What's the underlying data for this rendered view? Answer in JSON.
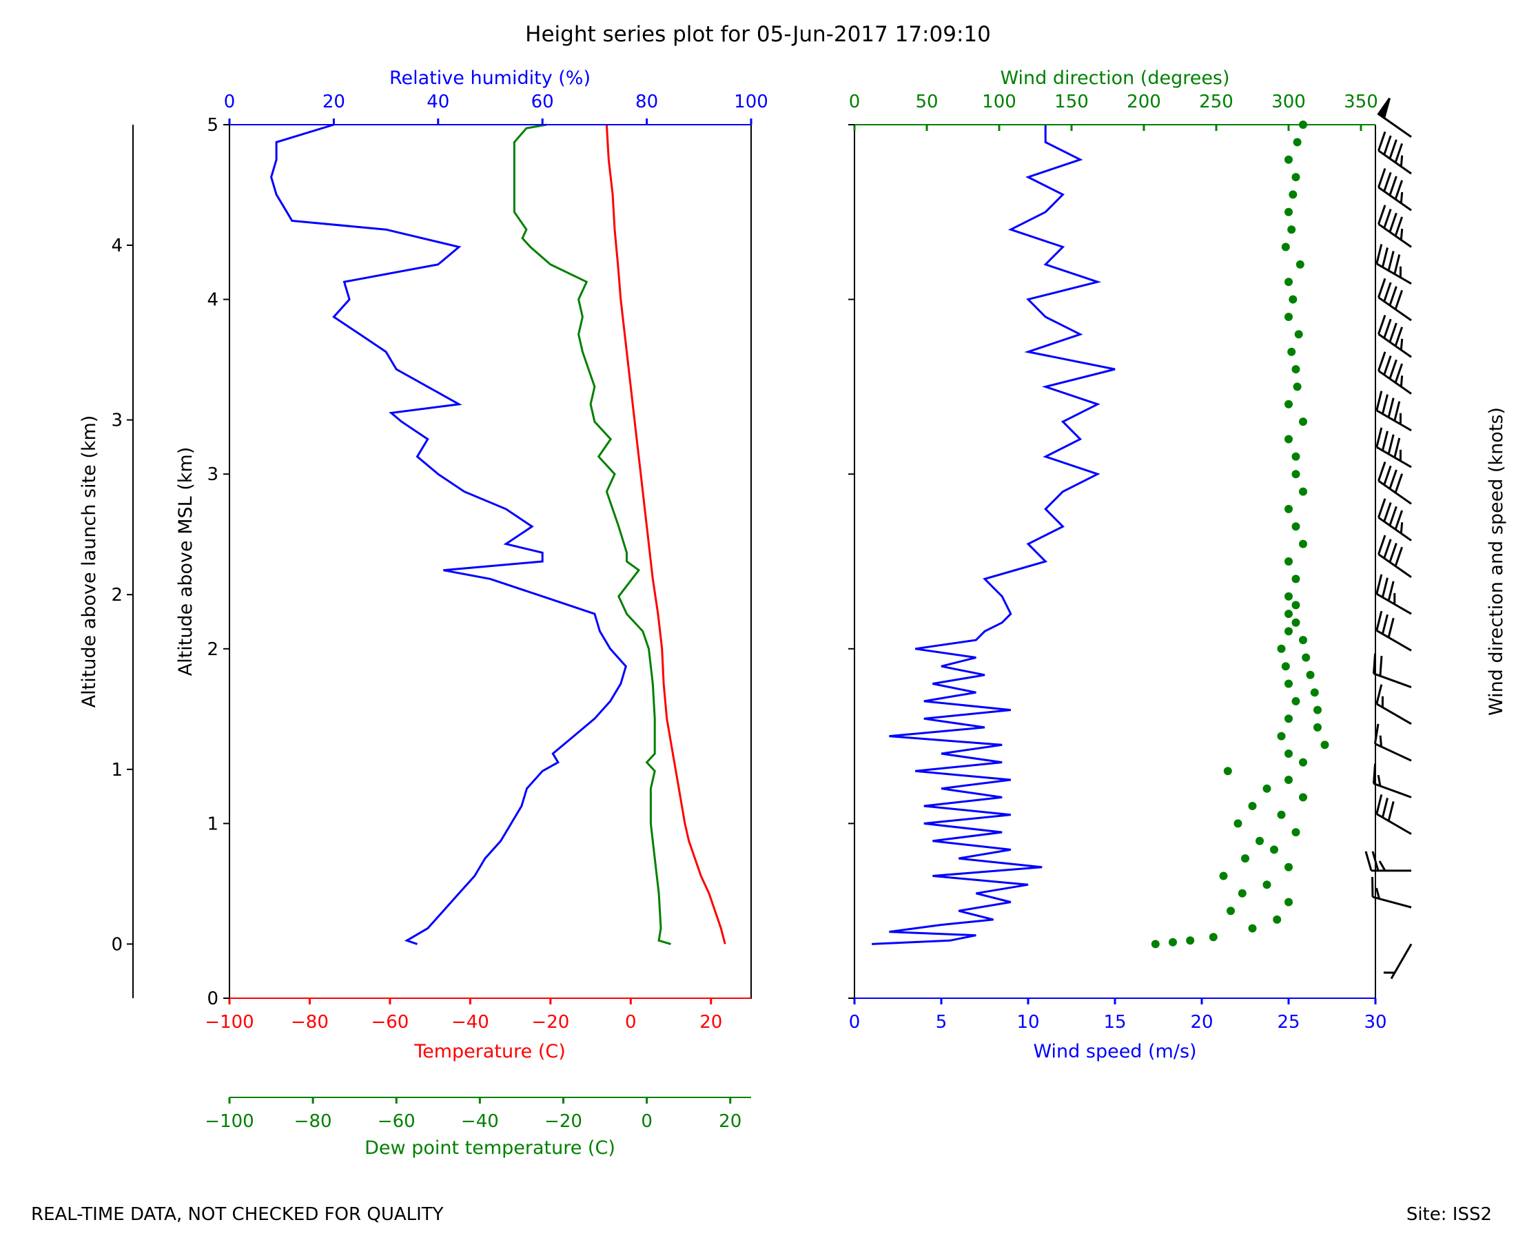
{
  "chart_data": {
    "type": "line",
    "title": "Height series plot for 05-Jun-2017 17:09:10",
    "footer_left": "REAL-TIME DATA, NOT CHECKED FOR QUALITY",
    "footer_right": "Site: ISS2",
    "colors": {
      "red": "#ff0000",
      "blue": "#0000ff",
      "green": "#008000",
      "black": "#000000"
    },
    "left_panel": {
      "ylabel_msl": "Altitude above MSL (km)",
      "ylim_msl": [
        0,
        5
      ],
      "msl_ticks": [
        "0",
        "1",
        "2",
        "3",
        "4",
        "5"
      ],
      "ylabel_launch": "Altitude above launch site (km)",
      "launch_site_offset_km": 0.31,
      "launch_ticks": [
        "0",
        "1",
        "2",
        "3",
        "4"
      ],
      "temperature": {
        "xlabel": "Temperature (C)",
        "xlim": [
          -100,
          30
        ],
        "ticks": [
          -100,
          -80,
          -60,
          -40,
          -20,
          0,
          20
        ],
        "tick_labels": [
          "−100",
          "−80",
          "−60",
          "−40",
          "−20",
          "0",
          "20"
        ],
        "alt_km": [
          0.31,
          0.4,
          0.5,
          0.6,
          0.7,
          0.8,
          0.9,
          1.0,
          1.2,
          1.4,
          1.6,
          1.8,
          2.0,
          2.2,
          2.4,
          2.6,
          2.8,
          3.0,
          3.2,
          3.4,
          3.6,
          3.8,
          4.0,
          4.2,
          4.4,
          4.6,
          4.8,
          5.0
        ],
        "values": [
          23.5,
          22.5,
          21,
          19.5,
          17.5,
          16,
          14.5,
          13.5,
          12,
          10.5,
          9,
          8.2,
          7.8,
          6.8,
          5.5,
          4.5,
          3.5,
          2.5,
          1.5,
          0.5,
          -0.5,
          -1.5,
          -2.5,
          -3.2,
          -4,
          -4.5,
          -5.5,
          -6
        ]
      },
      "dewpoint": {
        "xlabel": "Dew point temperature (C)",
        "xlim": [
          -100,
          25
        ],
        "ticks": [
          -100,
          -80,
          -60,
          -40,
          -20,
          0,
          20
        ],
        "tick_labels": [
          "−100",
          "−80",
          "−60",
          "−40",
          "−20",
          "0",
          "20"
        ],
        "alt_km": [
          0.31,
          0.33,
          0.4,
          0.6,
          0.8,
          1.0,
          1.2,
          1.3,
          1.35,
          1.4,
          1.6,
          1.8,
          2.0,
          2.1,
          2.2,
          2.3,
          2.45,
          2.5,
          2.55,
          2.7,
          2.9,
          3.0,
          3.1,
          3.2,
          3.3,
          3.4,
          3.5,
          3.7,
          3.8,
          3.9,
          4.0,
          4.1,
          4.2,
          4.3,
          4.35,
          4.4,
          4.5,
          4.7,
          4.9,
          4.98,
          5.0
        ],
        "values": [
          10,
          7,
          7.5,
          7,
          6,
          5,
          5,
          6,
          4,
          6,
          6,
          5.5,
          4.5,
          3,
          -1,
          -3,
          2,
          -1,
          -1,
          -3,
          -6,
          -4,
          -8,
          -5,
          -9,
          -10,
          -9,
          -12,
          -13,
          -12,
          -13,
          -11,
          -20,
          -25,
          -27,
          -26,
          -29,
          -29,
          -29,
          -26,
          -21
        ]
      },
      "relative_humidity": {
        "xlabel": "Relative humidity (%)",
        "xlim": [
          0,
          100
        ],
        "ticks": [
          0,
          20,
          40,
          60,
          80,
          100
        ],
        "tick_labels": [
          "0",
          "20",
          "40",
          "60",
          "80",
          "100"
        ],
        "alt_km": [
          0.31,
          0.33,
          0.4,
          0.5,
          0.6,
          0.7,
          0.8,
          0.9,
          1.0,
          1.1,
          1.2,
          1.3,
          1.35,
          1.4,
          1.5,
          1.6,
          1.7,
          1.8,
          1.9,
          2.0,
          2.1,
          2.2,
          2.3,
          2.4,
          2.45,
          2.5,
          2.55,
          2.6,
          2.7,
          2.8,
          2.9,
          3.0,
          3.1,
          3.2,
          3.3,
          3.35,
          3.4,
          3.5,
          3.6,
          3.7,
          3.8,
          3.9,
          4.0,
          4.1,
          4.2,
          4.3,
          4.4,
          4.45,
          4.5,
          4.6,
          4.7,
          4.8,
          4.9,
          5.0
        ],
        "values": [
          36,
          34,
          38,
          41,
          44,
          47,
          49,
          52,
          54,
          56,
          57,
          60,
          63,
          62,
          66,
          70,
          73,
          75,
          76,
          73,
          71,
          70,
          60,
          50,
          41,
          60,
          60,
          53,
          58,
          53,
          45,
          40,
          36,
          38,
          33,
          31,
          44,
          38,
          32,
          30,
          25,
          20,
          23,
          22,
          40,
          44,
          30,
          12,
          11,
          9,
          8,
          9,
          9,
          20
        ]
      }
    },
    "right_panel": {
      "wind_speed": {
        "xlabel": "Wind speed (m/s)",
        "xlim": [
          0,
          30
        ],
        "ticks": [
          0,
          5,
          10,
          15,
          20,
          25,
          30
        ],
        "tick_labels": [
          "0",
          "5",
          "10",
          "15",
          "20",
          "25",
          "30"
        ],
        "alt_km": [
          0.31,
          0.33,
          0.36,
          0.38,
          0.42,
          0.45,
          0.5,
          0.55,
          0.6,
          0.65,
          0.7,
          0.75,
          0.8,
          0.85,
          0.9,
          0.95,
          1.0,
          1.05,
          1.1,
          1.15,
          1.2,
          1.25,
          1.3,
          1.35,
          1.4,
          1.45,
          1.5,
          1.55,
          1.6,
          1.65,
          1.7,
          1.75,
          1.8,
          1.85,
          1.9,
          1.95,
          2.0,
          2.05,
          2.1,
          2.15,
          2.2,
          2.3,
          2.4,
          2.5,
          2.6,
          2.7,
          2.8,
          2.9,
          3.0,
          3.1,
          3.2,
          3.3,
          3.4,
          3.5,
          3.6,
          3.7,
          3.8,
          3.9,
          4.0,
          4.1,
          4.2,
          4.3,
          4.4,
          4.5,
          4.6,
          4.7,
          4.8,
          4.9,
          5.0
        ],
        "values": [
          1,
          5.5,
          7,
          2,
          5,
          8,
          6,
          9,
          7,
          10,
          4.5,
          10.8,
          6,
          9,
          4.5,
          8.5,
          4,
          9,
          4,
          8.5,
          5,
          9,
          3.5,
          8.5,
          5,
          8.5,
          2,
          7.5,
          4,
          9,
          4,
          7,
          4.5,
          7.5,
          5,
          7,
          3.5,
          7,
          7.5,
          8.5,
          9,
          8.5,
          7.5,
          11,
          10,
          12,
          11,
          12,
          14,
          11,
          13,
          12,
          14,
          11,
          15,
          10,
          13,
          11,
          10,
          14,
          11,
          12,
          9,
          11,
          12,
          10,
          13,
          11,
          11
        ]
      },
      "wind_direction": {
        "xlabel": "Wind direction (degrees)",
        "xlim": [
          0,
          360
        ],
        "ticks": [
          0,
          50,
          100,
          150,
          200,
          250,
          300,
          350
        ],
        "tick_labels": [
          "0",
          "50",
          "100",
          "150",
          "200",
          "250",
          "300",
          "350"
        ],
        "alt_km": [
          0.31,
          0.32,
          0.33,
          0.35,
          0.4,
          0.45,
          0.5,
          0.55,
          0.6,
          0.65,
          0.7,
          0.75,
          0.8,
          0.85,
          0.9,
          0.95,
          1.0,
          1.05,
          1.1,
          1.15,
          1.2,
          1.25,
          1.3,
          1.35,
          1.4,
          1.45,
          1.5,
          1.55,
          1.6,
          1.65,
          1.7,
          1.75,
          1.8,
          1.85,
          1.9,
          1.95,
          2.0,
          2.05,
          2.1,
          2.15,
          2.2,
          2.25,
          2.3,
          2.4,
          2.5,
          2.6,
          2.7,
          2.8,
          2.9,
          3.0,
          3.1,
          3.2,
          3.3,
          3.4,
          3.5,
          3.6,
          3.7,
          3.8,
          3.9,
          4.0,
          4.1,
          4.2,
          4.3,
          4.4,
          4.5,
          4.6,
          4.7,
          4.8,
          4.9,
          5.0
        ],
        "values": [
          208,
          220,
          232,
          248,
          275,
          292,
          260,
          300,
          268,
          285,
          255,
          300,
          270,
          290,
          280,
          305,
          265,
          295,
          275,
          310,
          285,
          300,
          258,
          310,
          300,
          325,
          295,
          320,
          300,
          320,
          305,
          318,
          300,
          315,
          298,
          312,
          295,
          310,
          300,
          305,
          300,
          305,
          300,
          305,
          300,
          310,
          305,
          300,
          310,
          305,
          305,
          300,
          310,
          300,
          306,
          305,
          302,
          307,
          300,
          303,
          300,
          308,
          298,
          302,
          300,
          303,
          305,
          300,
          306,
          310
        ]
      },
      "barbs": {
        "label": "Wind direction and speed (knots)",
        "alt_km": [
          0.31,
          0.52,
          0.73,
          0.94,
          1.15,
          1.36,
          1.57,
          1.78,
          1.99,
          2.2,
          2.41,
          2.62,
          2.83,
          3.04,
          3.25,
          3.46,
          3.67,
          3.88,
          4.09,
          4.3,
          4.51,
          4.72,
          4.93
        ],
        "speed_knots": [
          5,
          15,
          25,
          30,
          15,
          15,
          15,
          20,
          30,
          35,
          40,
          45,
          40,
          45,
          45,
          45,
          45,
          40,
          45,
          45,
          45,
          45,
          50
        ],
        "direction_deg": [
          210,
          285,
          270,
          300,
          290,
          295,
          300,
          290,
          300,
          300,
          305,
          305,
          305,
          300,
          300,
          305,
          305,
          305,
          300,
          305,
          305,
          305,
          305
        ]
      }
    }
  }
}
